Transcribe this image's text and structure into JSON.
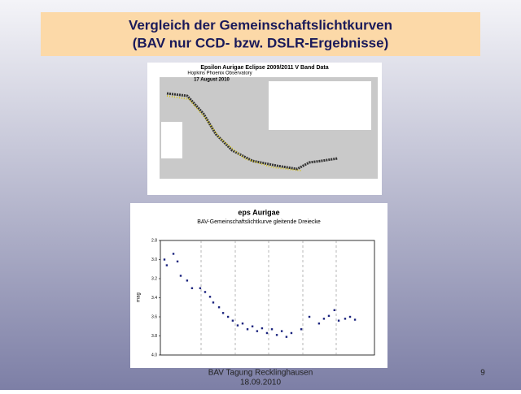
{
  "header": {
    "title_lines": [
      "Vergleich der Gemeinschaftslichtkurven",
      "(BAV nur CCD- bzw. DSLR-Ergebnisse)"
    ]
  },
  "figure": {
    "title": "Epsilon Aurigae Eclipse 2009/2011 V Band Data",
    "subtitle": "Hopkins Phoenix Observatory",
    "date": "17 August 2010"
  },
  "chart_data": {
    "type": "scatter",
    "title": "eps Aurigae",
    "subtitle": "BAV-Gemeinschaftslichtkurve gleitende Dreiecke",
    "y_label": "mag",
    "x": [
      1.9,
      3.0,
      6.1,
      8.0,
      9.5,
      12.5,
      14.8,
      18.6,
      20.9,
      23.2,
      24.7,
      27.4,
      29.3,
      31.6,
      33.8,
      36.1,
      38.4,
      40.7,
      43.0,
      45.2,
      47.5,
      49.8,
      52.1,
      54.4,
      56.7,
      58.9,
      61.2,
      65.8,
      69.6,
      74.1,
      76.4,
      78.7,
      81.3,
      83.3,
      86.3,
      88.6,
      90.9
    ],
    "values": [
      3.0,
      3.06,
      2.94,
      3.02,
      3.17,
      3.22,
      3.3,
      3.3,
      3.34,
      3.39,
      3.45,
      3.5,
      3.56,
      3.6,
      3.64,
      3.69,
      3.67,
      3.73,
      3.7,
      3.75,
      3.72,
      3.77,
      3.73,
      3.79,
      3.75,
      3.81,
      3.77,
      3.73,
      3.6,
      3.67,
      3.62,
      3.59,
      3.53,
      3.64,
      3.62,
      3.6,
      3.63
    ],
    "color": "#1a237e",
    "xlim": [
      0,
      100
    ],
    "ylim": [
      2.8,
      4.0
    ],
    "y_inverted": true,
    "yticks": [
      2.8,
      {
        "value": 3,
        "label": "3.0"
      },
      3.2,
      3.4,
      3.6,
      3.8,
      {
        "value": 4,
        "label": "4.0"
      }
    ]
  },
  "footer": {
    "lines": [
      "BAV Tagung Recklinghausen",
      "18.09.2010"
    ],
    "page": "9"
  }
}
